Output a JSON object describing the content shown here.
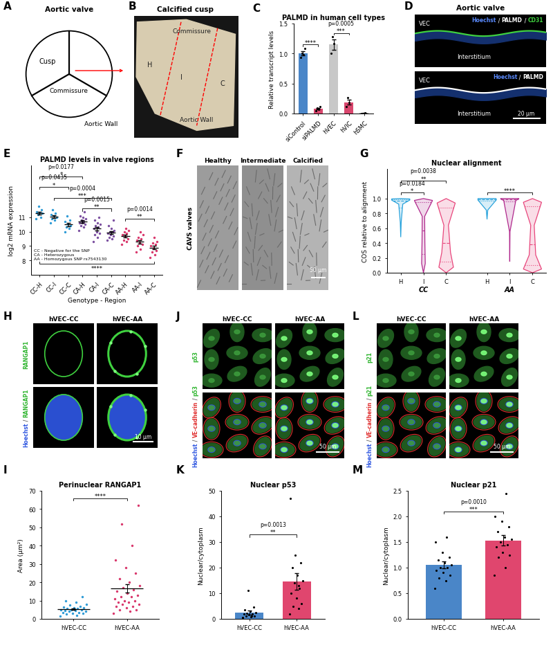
{
  "chart_data": [
    {
      "label": "C",
      "type": "bar",
      "title": "PALMD in human cell types",
      "y_label": "Relative transcript levels",
      "categories": [
        "siControl",
        "siPALMD",
        "hVEC",
        "hVIC",
        "hSMC"
      ],
      "values": [
        1.0,
        0.08,
        1.15,
        0.19,
        0.008
      ],
      "errors": [
        0.035,
        0.013,
        0.09,
        0.04,
        0.003
      ],
      "points": [
        [
          0.93,
          0.98,
          1.0,
          1.09
        ],
        [
          0.05,
          0.07,
          0.09,
          0.11
        ],
        [
          1.0,
          1.17,
          1.28
        ],
        [
          0.12,
          0.18,
          0.27
        ],
        [
          0.005,
          0.011
        ]
      ],
      "colors": [
        "#4a86c8",
        "#d9466d",
        "#c8c8c8",
        "#d9466d",
        "#9a9a9a"
      ],
      "ylim": [
        0,
        1.5
      ],
      "yticks": [
        {
          "value": 0,
          "label": "0.0"
        },
        0.5,
        {
          "value": 1.0,
          "label": "1.0"
        },
        1.5
      ],
      "brackets": [
        {
          "from": "siControl",
          "to": "siPALMD",
          "y": 1.15,
          "stars": "****"
        },
        {
          "from": "hVEC",
          "to": "hVIC",
          "y": 1.34,
          "p": "p=0.0005",
          "stars": "***"
        }
      ]
    },
    {
      "label": "E",
      "type": "dot",
      "title": "PALMD levels in valve regions",
      "y_label": "log2 mRNA expression",
      "x_label": "Genotype - Region",
      "categories": [
        "CC-H",
        "CC-I",
        "CC-C",
        "CA-H",
        "CA-I",
        "CA-C",
        "AA-H",
        "AA-I",
        "AA-C"
      ],
      "values": [
        11.3,
        11.05,
        10.5,
        10.7,
        10.2,
        9.95,
        9.7,
        9.3,
        8.9
      ],
      "errors": [
        0.1,
        0.1,
        0.12,
        0.1,
        0.1,
        0.1,
        0.1,
        0.12,
        0.12
      ],
      "points": [
        [
          10.9,
          11.0,
          11.2,
          11.3,
          11.35,
          11.4,
          11.5,
          11.75
        ],
        [
          10.6,
          10.8,
          10.9,
          11.0,
          11.1,
          11.2,
          11.3,
          11.5
        ],
        [
          10.0,
          10.2,
          10.3,
          10.4,
          10.5,
          10.7,
          10.8,
          11.1
        ],
        [
          10.1,
          10.3,
          10.4,
          10.5,
          10.6,
          10.6,
          10.7,
          10.8,
          10.9,
          11.0,
          11.1,
          11.4
        ],
        [
          9.3,
          9.6,
          9.8,
          9.9,
          10.0,
          10.2,
          10.3,
          10.4,
          10.5,
          10.6,
          10.8,
          11.0
        ],
        [
          9.4,
          9.5,
          9.6,
          9.7,
          9.8,
          9.9,
          10.0,
          10.0,
          10.1,
          10.2,
          10.4,
          10.8
        ],
        [
          9.1,
          9.3,
          9.4,
          9.5,
          9.7,
          9.8,
          9.9,
          10.0,
          10.1,
          10.2
        ],
        [
          8.6,
          8.8,
          9.0,
          9.1,
          9.2,
          9.4,
          9.5,
          9.6,
          9.8,
          10.0
        ],
        [
          8.2,
          8.4,
          8.6,
          8.7,
          8.9,
          9.0,
          9.1,
          9.2,
          9.3,
          9.6
        ]
      ],
      "colors": [
        "#2e9bd6",
        "#2e9bd6",
        "#2e9bd6",
        "#7b4fa0",
        "#7b4fa0",
        "#7b4fa0",
        "#d9366b",
        "#d9366b",
        "#d9366b"
      ],
      "ylim": [
        7.0,
        14.6
      ],
      "yticks": [
        8,
        9,
        10,
        11
      ],
      "notes": [
        "CC - Negative for the SNP",
        "CA - Heterozygous",
        "AA - Homozygous SNP rs7543130"
      ],
      "brackets": [
        {
          "from": "CC-H",
          "to": "CA-H",
          "y": 13.85,
          "p": "p=0.0177",
          "stars": "*"
        },
        {
          "from": "CC-H",
          "to": "CC-C",
          "y": 13.1,
          "p": "p=0.0435",
          "stars": "*"
        },
        {
          "from": "CC-I",
          "to": "CA-C",
          "y": 12.35,
          "p": "p=0.0004",
          "stars": "***"
        },
        {
          "from": "CA-H",
          "to": "CA-C",
          "y": 11.6,
          "p": "p=0.0015",
          "stars": "**"
        },
        {
          "from": "AA-H",
          "to": "AA-C",
          "y": 10.9,
          "p": "p=0.0014",
          "stars": "**"
        },
        {
          "from": "CC-H",
          "to": "AA-C",
          "y": 7.75,
          "stars": "****"
        }
      ]
    },
    {
      "label": "G",
      "type": "violin",
      "title": "Nuclear alignment",
      "y_label": "COS relative to alignment",
      "groups": [
        {
          "name": "CC",
          "categories": [
            "H",
            "I",
            "C"
          ],
          "min": [
            0.48,
            0.0,
            0.0
          ],
          "q1": [
            0.88,
            0.25,
            0.15
          ],
          "median": [
            0.97,
            0.57,
            0.4
          ],
          "q3": [
            0.99,
            0.95,
            0.88
          ],
          "max": [
            1.0,
            1.0,
            1.0
          ]
        },
        {
          "name": "AA",
          "categories": [
            "H",
            "I",
            "C"
          ],
          "min": [
            0.72,
            0.15,
            0.0
          ],
          "q1": [
            0.97,
            0.96,
            0.1
          ],
          "median": [
            0.99,
            0.99,
            0.38
          ],
          "q3": [
            1.0,
            1.0,
            0.9
          ],
          "max": [
            1.0,
            1.0,
            1.0
          ]
        }
      ],
      "colors": [
        "#29a3dc",
        "#b0288c",
        "#e8467c"
      ],
      "ylim": [
        0,
        1.4
      ],
      "yticks": [
        {
          "value": 0,
          "label": "0.0"
        },
        0.2,
        0.4,
        0.6,
        0.8,
        {
          "value": 1.0,
          "label": "1.0"
        }
      ],
      "brackets": [
        {
          "group": "CC",
          "from": "H",
          "to": "I",
          "y": 1.08,
          "p": "p=0.0184",
          "stars": "*"
        },
        {
          "group": "CC",
          "from": "H",
          "to": "C",
          "y": 1.24,
          "p": "p=0.0038",
          "stars": "**"
        },
        {
          "group": "AA",
          "from": "H",
          "to": "C",
          "y": 1.08,
          "stars": "****"
        }
      ]
    },
    {
      "label": "I",
      "type": "dot",
      "title": "Perinuclear RANGAP1",
      "y_label": "Area (µm²)",
      "categories": [
        "hVEC-CC",
        "hVEC-AA"
      ],
      "values": [
        5.36,
        16.67
      ],
      "errors": [
        0.5,
        2.4
      ],
      "points": [
        [
          1.5,
          2,
          2.5,
          3,
          3,
          3.5,
          3.5,
          4,
          4,
          4.5,
          4.5,
          5,
          5,
          5,
          5.5,
          5.5,
          6,
          6,
          6.5,
          7,
          7.5,
          8,
          9,
          10,
          12
        ],
        [
          3,
          4,
          5,
          5,
          6,
          7,
          7,
          8,
          8,
          9,
          9,
          10,
          10,
          11,
          12,
          12,
          13,
          14,
          15,
          16,
          17,
          18,
          20,
          22,
          25,
          28,
          32,
          40,
          52,
          62
        ]
      ],
      "colors": [
        "#2e9bd6",
        "#d9366b"
      ],
      "ylim": [
        0,
        70
      ],
      "yticks": [
        0,
        10,
        20,
        30,
        40,
        50,
        60,
        70
      ],
      "brackets": [
        {
          "from": "hVEC-CC",
          "to": "hVEC-AA",
          "y": 66,
          "stars": "****"
        }
      ]
    },
    {
      "label": "K",
      "type": "bar",
      "title": "Nuclear p53",
      "y_label": "Nuclear/cytoplasm",
      "categories": [
        "hVEC-CC",
        "hVEC-AA"
      ],
      "values": [
        2.48,
        14.67
      ],
      "errors": [
        0.8,
        3.2
      ],
      "points": [
        [
          0.5,
          0.8,
          1,
          1.2,
          1.5,
          1.8,
          2,
          2.2,
          2.5,
          3,
          3.5,
          4.5,
          11,
          0.6,
          1.1
        ],
        [
          2,
          4,
          5,
          6,
          8,
          10,
          12,
          14,
          15,
          17,
          20,
          22,
          25,
          47,
          13
        ]
      ],
      "colors": [
        "#4a86c8",
        "#e0466e"
      ],
      "ylim": [
        0,
        50
      ],
      "yticks": [
        0,
        10,
        20,
        30,
        40,
        50
      ],
      "brackets": [
        {
          "from": "hVEC-CC",
          "to": "hVEC-AA",
          "y": 33,
          "p": "p=0.0013",
          "stars": "**"
        }
      ]
    },
    {
      "label": "M",
      "type": "bar",
      "title": "Nuclear p21",
      "y_label": "Nuclear/cytoplasm",
      "categories": [
        "hVEC-CC",
        "hVEC-AA"
      ],
      "values": [
        1.05,
        1.53
      ],
      "errors": [
        0.07,
        0.1
      ],
      "points": [
        [
          0.6,
          0.75,
          0.8,
          0.85,
          0.9,
          0.95,
          1.0,
          1.0,
          1.05,
          1.1,
          1.15,
          1.2,
          1.3,
          1.5,
          1.6
        ],
        [
          0.85,
          1.0,
          1.2,
          1.25,
          1.3,
          1.4,
          1.45,
          1.5,
          1.55,
          1.6,
          1.7,
          1.8,
          1.9,
          2.0,
          2.45
        ]
      ],
      "colors": [
        "#4a86c8",
        "#e0466e"
      ],
      "ylim": [
        0,
        2.5
      ],
      "yticks": [
        {
          "value": 0,
          "label": "0.0"
        },
        0.5,
        {
          "value": 1.0,
          "label": "1.0"
        },
        1.5,
        {
          "value": 2.0,
          "label": "2.0"
        },
        2.5
      ],
      "brackets": [
        {
          "from": "hVEC-CC",
          "to": "hVEC-AA",
          "y": 2.1,
          "p": "p=0.0010",
          "stars": "***"
        }
      ]
    }
  ],
  "images": [
    {
      "label": "A",
      "title": "Aortic valve",
      "texts": {
        "cusp": "Cusp",
        "commissure": "Commissure",
        "wall": "Aortic Wall"
      }
    },
    {
      "label": "B",
      "title": "Calcified cusp",
      "texts": {
        "commissure": "Commissure",
        "h": "H",
        "i": "I",
        "c": "C",
        "wall": "Aortic Wall"
      }
    },
    {
      "label": "D",
      "title": "Aortic valve",
      "rows": [
        {
          "channels": "Hoechst / PALMD / CD31",
          "top": "VEC",
          "bottom": "Interstitium"
        },
        {
          "channels": "Hoechst / PALMD",
          "top": "VEC",
          "bottom": "Interstitium"
        }
      ],
      "scale": "20 µm"
    },
    {
      "label": "F",
      "columns": [
        "Healthy",
        "Intermediate",
        "Calcified"
      ],
      "row": "CAVS valves",
      "scale": "50 µm"
    },
    {
      "label": "H",
      "columns": [
        "hVEC-CC",
        "hVEC-AA"
      ],
      "rows": [
        "RANGAP1",
        "Hoechst / RANGAP1"
      ],
      "scale": "10 µm"
    },
    {
      "label": "J",
      "columns": [
        "hVEC-CC",
        "hVEC-AA"
      ],
      "rows": [
        "p53",
        "Hoechst / VE-cadherin / p53"
      ],
      "scale": "50 µm"
    },
    {
      "label": "L",
      "columns": [
        "hVEC-CC",
        "hVEC-AA"
      ],
      "rows": [
        "p21",
        "Hoechst / VE-cadherin / p21"
      ],
      "scale": "50 µm"
    }
  ]
}
